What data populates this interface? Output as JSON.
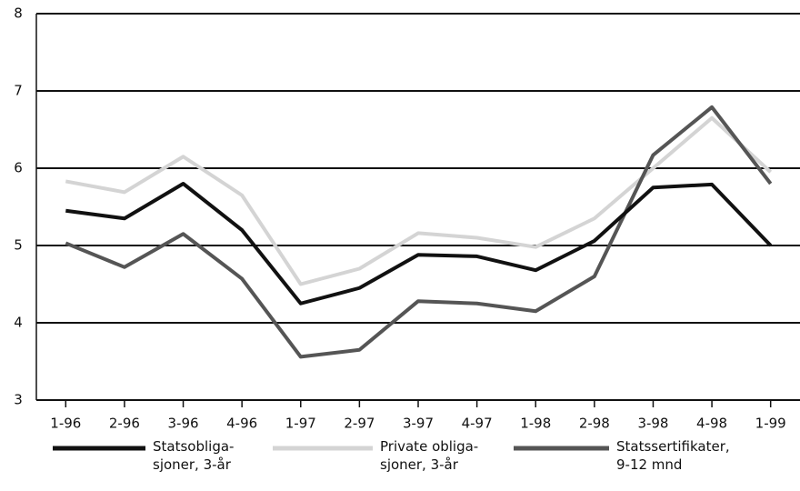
{
  "chart_data": {
    "type": "line",
    "categories": [
      "1-96",
      "2-96",
      "3-96",
      "4-96",
      "1-97",
      "2-97",
      "3-97",
      "4-97",
      "1-98",
      "2-98",
      "3-98",
      "4-98",
      "1-99"
    ],
    "series": [
      {
        "name": "Statsobliga-\nsjoner, 3-år",
        "color": "#111111",
        "width": 4,
        "values": [
          5.45,
          5.35,
          5.8,
          5.2,
          4.25,
          4.45,
          4.88,
          4.86,
          4.68,
          5.06,
          5.75,
          5.79,
          5.0
        ]
      },
      {
        "name": "Private obliga-\nsjoner, 3-år",
        "color": "#d4d4d4",
        "width": 4,
        "values": [
          5.83,
          5.69,
          6.15,
          5.65,
          4.5,
          4.7,
          5.16,
          5.1,
          4.98,
          5.35,
          6.0,
          6.65,
          5.95
        ]
      },
      {
        "name": "Statssertifikater,\n9-12 mnd",
        "color": "#555555",
        "width": 4,
        "values": [
          5.03,
          4.72,
          5.15,
          4.57,
          3.56,
          3.65,
          4.28,
          4.25,
          4.15,
          4.6,
          6.17,
          6.79,
          5.8
        ]
      }
    ],
    "ylim": [
      3,
      8
    ],
    "yticks": [
      3,
      4,
      5,
      6,
      7,
      8
    ],
    "grid": true
  }
}
